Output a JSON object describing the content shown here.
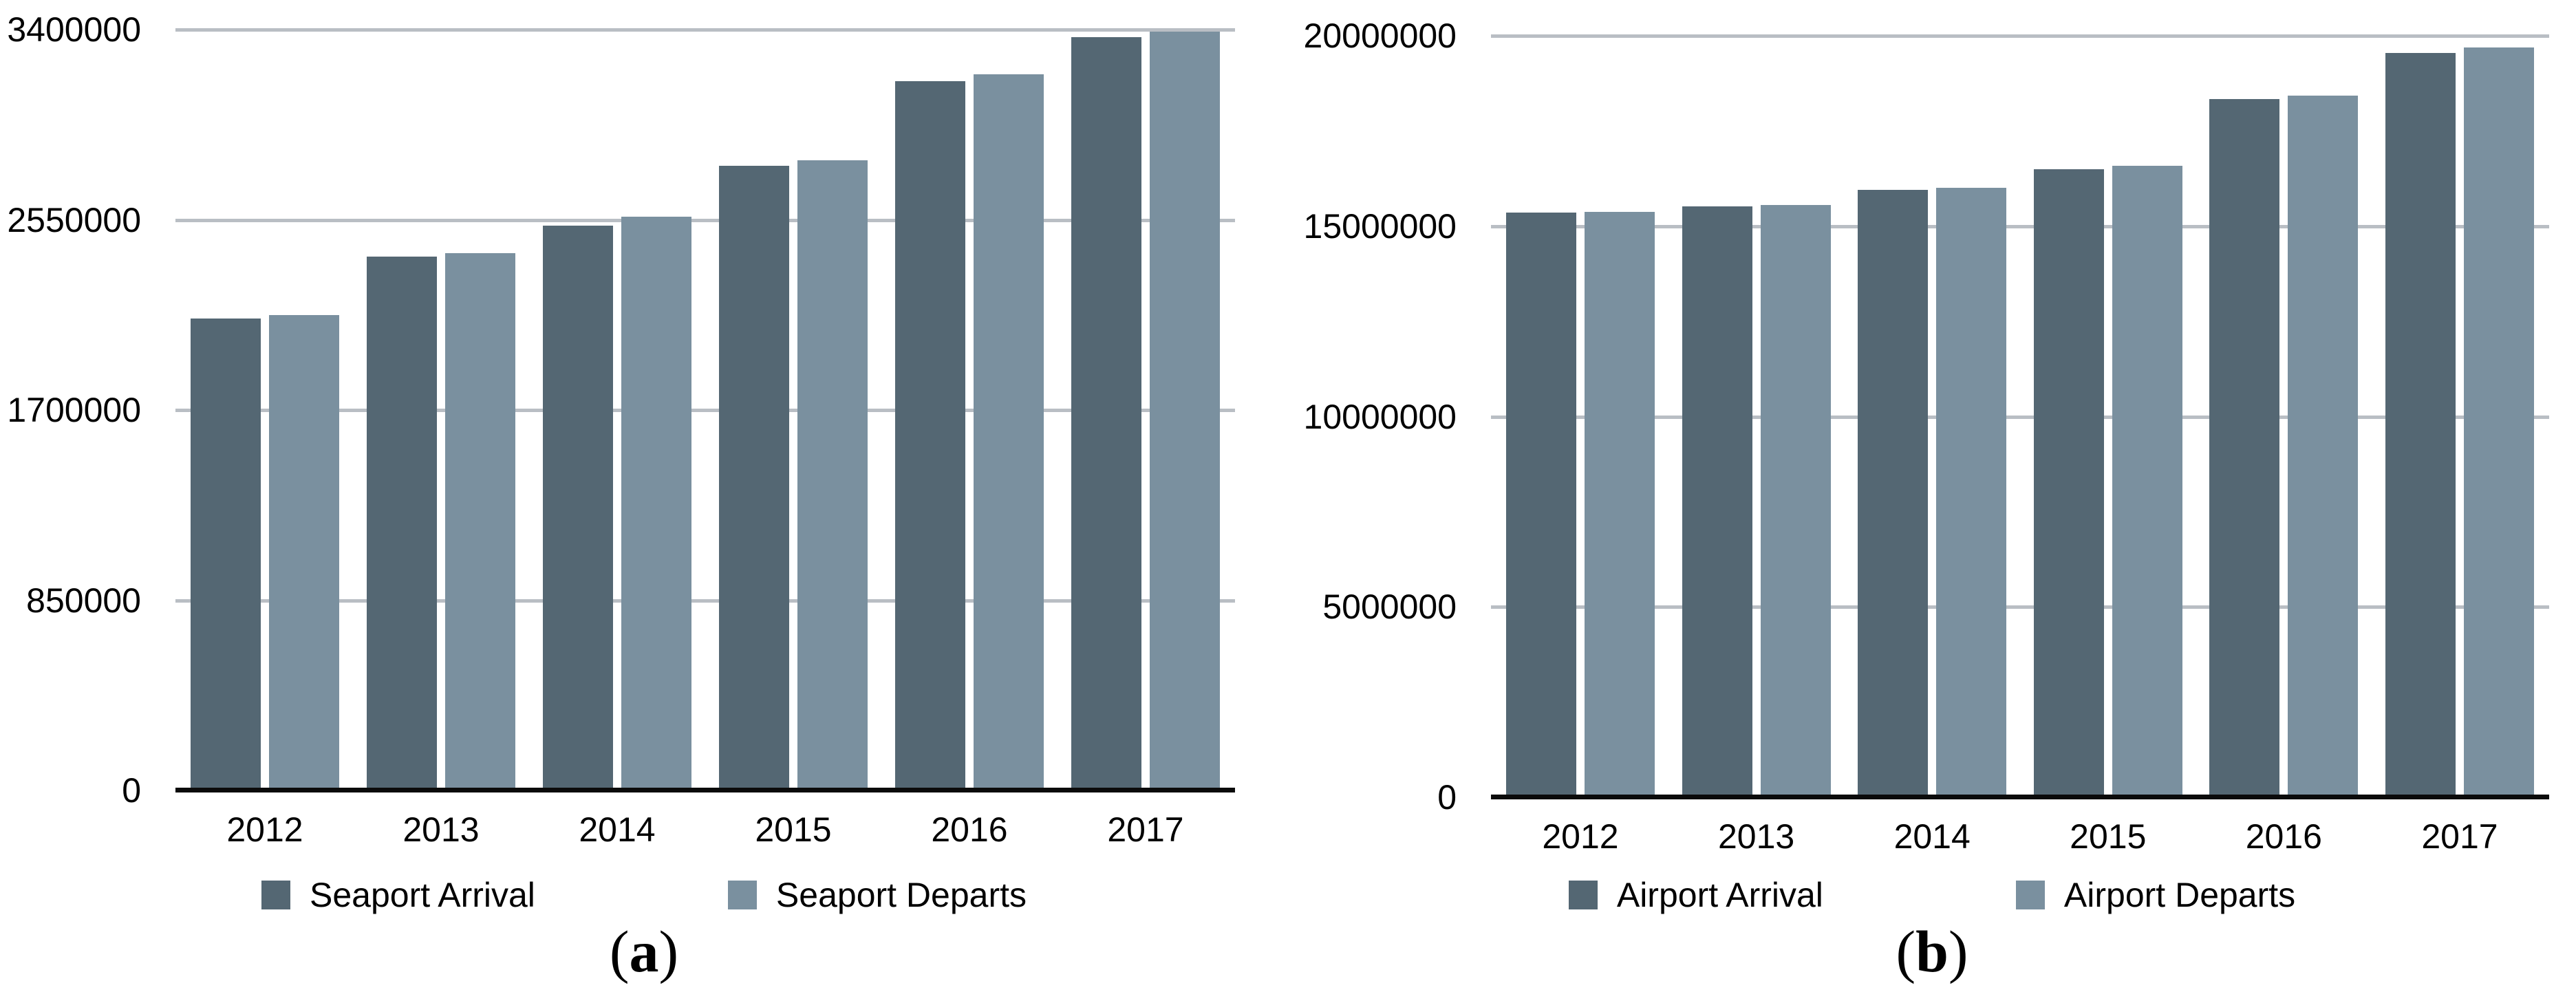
{
  "colors": {
    "bar_dark": "#546773",
    "bar_light": "#7A909F",
    "gridline": "#B9BEC4",
    "axis_line": "#0B0B0B",
    "text": "#000000",
    "background": "#FFFFFF"
  },
  "chart_data": [
    {
      "type": "bar",
      "panel_label": "a",
      "caption": "(a)",
      "categories": [
        "2012",
        "2013",
        "2014",
        "2015",
        "2016",
        "2017"
      ],
      "series": [
        {
          "name": "Seaport Arrival",
          "color_role": "dark",
          "color": "#546773",
          "values": [
            2110000,
            2385000,
            2525000,
            2790000,
            3170000,
            3365000
          ]
        },
        {
          "name": "Seaport Departs",
          "color_role": "light",
          "color": "#7A909F",
          "values": [
            2125000,
            2400000,
            2565000,
            2815000,
            3200000,
            3390000
          ]
        }
      ],
      "ylim": [
        0,
        3400000
      ],
      "y_ticks": [
        3400000,
        2550000,
        1700000,
        850000,
        0
      ],
      "xlabel": "",
      "ylabel": "",
      "grid": "horizontal",
      "legend_position": "bottom"
    },
    {
      "type": "bar",
      "panel_label": "b",
      "caption": "(b)",
      "categories": [
        "2012",
        "2013",
        "2014",
        "2015",
        "2016",
        "2017"
      ],
      "series": [
        {
          "name": "Airport Arrival",
          "color_role": "dark",
          "color": "#546773",
          "values": [
            15350000,
            15520000,
            15950000,
            16500000,
            18330000,
            19540000
          ]
        },
        {
          "name": "Airport Departs",
          "color_role": "light",
          "color": "#7A909F",
          "values": [
            15380000,
            15550000,
            16010000,
            16590000,
            18420000,
            19700000
          ]
        }
      ],
      "ylim": [
        0,
        20000000
      ],
      "y_ticks": [
        20000000,
        15000000,
        10000000,
        5000000,
        0
      ],
      "xlabel": "",
      "ylabel": "",
      "grid": "horizontal",
      "legend_position": "bottom"
    }
  ]
}
